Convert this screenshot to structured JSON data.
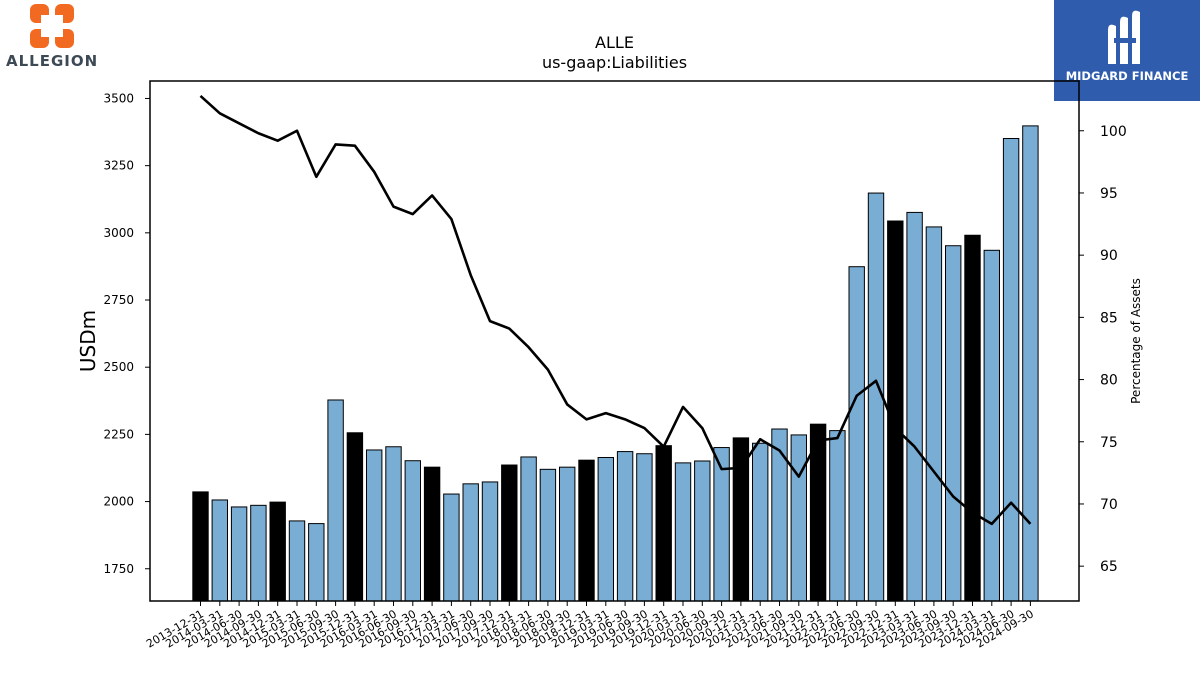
{
  "header": {
    "company_logo_text": "ALLEGION",
    "brand_text": "MIDGARD FINANCE"
  },
  "chart_data": {
    "type": "bar",
    "title": "ALLE",
    "subtitle": "us-gaap:Liabilities",
    "ylabel": "USDm",
    "y2label": "Percentage of Assets",
    "ylim": [
      1630,
      3565
    ],
    "y2lim": [
      62.2,
      104
    ],
    "yticks": [
      1750,
      2000,
      2250,
      2500,
      2750,
      3000,
      3250,
      3500
    ],
    "y2ticks": [
      65,
      70,
      75,
      80,
      85,
      90,
      95,
      100
    ],
    "bar_color": "#7aadd4",
    "highlight_color": "#000000",
    "line_color": "#000000",
    "grid": false,
    "categories": [
      "2013-12-31",
      "2014-03-31",
      "2014-06-30",
      "2014-09-30",
      "2014-12-31",
      "2015-03-31",
      "2015-06-30",
      "2015-09-30",
      "2015-12-31",
      "2016-03-31",
      "2016-06-30",
      "2016-09-30",
      "2016-12-31",
      "2017-03-31",
      "2017-06-30",
      "2017-09-30",
      "2017-12-31",
      "2018-03-31",
      "2018-06-30",
      "2018-09-30",
      "2018-12-31",
      "2019-03-31",
      "2019-06-30",
      "2019-09-30",
      "2019-12-31",
      "2020-03-31",
      "2020-06-30",
      "2020-09-30",
      "2020-12-31",
      "2021-03-31",
      "2021-06-30",
      "2021-09-30",
      "2021-12-31",
      "2022-03-31",
      "2022-06-30",
      "2022-09-30",
      "2022-12-31",
      "2023-03-31",
      "2023-06-30",
      "2023-09-30",
      "2023-12-31",
      "2024-03-31",
      "2024-06-30",
      "2024-09-30"
    ],
    "series": [
      {
        "kind": "bar",
        "values": [
          2036,
          2006,
          1980,
          1986,
          1998,
          1928,
          1918,
          2378,
          2256,
          2192,
          2204,
          2152,
          2128,
          2028,
          2066,
          2073,
          2136,
          2166,
          2120,
          2128,
          2154,
          2164,
          2186,
          2178,
          2208,
          2144,
          2151,
          2201,
          2237,
          2217,
          2270,
          2248,
          2288,
          2264,
          2874,
          3148,
          3044,
          3076,
          3022,
          2952,
          2991,
          2935,
          3351,
          3398
        ],
        "highlighted": [
          true,
          false,
          false,
          false,
          true,
          false,
          false,
          false,
          true,
          false,
          false,
          false,
          true,
          false,
          false,
          false,
          true,
          false,
          false,
          false,
          true,
          false,
          false,
          false,
          true,
          false,
          false,
          false,
          true,
          false,
          false,
          false,
          true,
          false,
          false,
          false,
          true,
          false,
          false,
          false,
          true,
          false,
          false,
          false
        ]
      },
      {
        "kind": "line",
        "axis": "right",
        "values": [
          102.8,
          101.4,
          100.6,
          99.8,
          99.2,
          100.0,
          96.3,
          98.9,
          98.8,
          96.7,
          93.9,
          93.3,
          94.8,
          92.9,
          88.4,
          84.7,
          84.1,
          82.6,
          80.8,
          78.0,
          76.8,
          77.3,
          76.8,
          76.1,
          74.6,
          77.8,
          76.1,
          72.8,
          72.9,
          75.2,
          74.3,
          72.2,
          75.1,
          75.3,
          78.7,
          79.9,
          76.1,
          74.6,
          72.6,
          70.6,
          69.3,
          68.4,
          70.1,
          68.4
        ]
      }
    ]
  }
}
